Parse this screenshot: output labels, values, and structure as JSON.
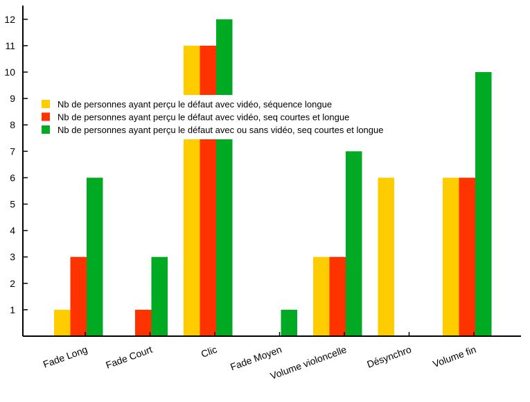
{
  "chart_data": {
    "type": "bar",
    "categories": [
      "Fade Long",
      "Fade Court",
      "Clic",
      "Fade Moyen",
      "Volume violoncelle",
      "Désynchro",
      "Volume fin"
    ],
    "series": [
      {
        "name": "Nb de personnes ayant perçu le défaut avec vidéo, séquence longue",
        "color": "#FFCC00",
        "values": [
          1,
          0,
          11,
          0,
          3,
          6,
          6
        ]
      },
      {
        "name": "Nb de personnes ayant perçu le défaut avec vidéo, seq courtes et longue",
        "color": "#FF3300",
        "values": [
          3,
          1,
          11,
          0,
          3,
          0,
          6
        ]
      },
      {
        "name": "Nb de personnes ayant perçu le défaut avec ou sans vidéo, seq courtes et longue",
        "color": "#00AA22",
        "values": [
          6,
          3,
          12,
          1,
          7,
          0,
          10
        ]
      }
    ],
    "yticks": [
      1,
      2,
      3,
      4,
      5,
      6,
      7,
      8,
      9,
      10,
      11,
      12
    ],
    "ylim": [
      0,
      12.6
    ],
    "grid": false,
    "legend_position": "middle, overlapping the plot",
    "title": "",
    "xlabel": "",
    "ylabel": ""
  }
}
